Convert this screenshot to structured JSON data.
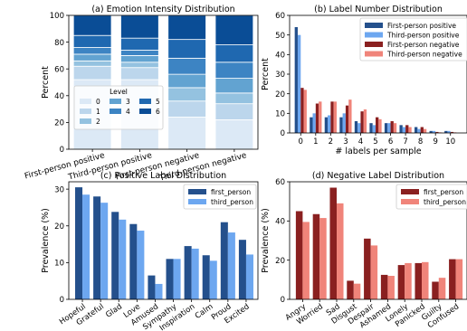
{
  "chart_data": [
    {
      "type": "bar",
      "stacked": true,
      "title": "(a) Emotion Intensity Distribution",
      "ylabel": "Percent",
      "ylim": [
        0,
        100
      ],
      "yticks": [
        0,
        20,
        40,
        60,
        80,
        100
      ],
      "categories": [
        "First-person positive",
        "Third-person positive",
        "First-person negative",
        "Third-person negative"
      ],
      "legend": {
        "title": "Level",
        "entries": [
          "0",
          "1",
          "2",
          "3",
          "4",
          "5",
          "6"
        ],
        "placement": "lower-left"
      },
      "colors": [
        "#dce9f6",
        "#bcd6ec",
        "#94c2e0",
        "#62a3d1",
        "#3d84c3",
        "#1f68b0",
        "#0a4d96"
      ],
      "series": [
        {
          "name": "0",
          "values": [
            52,
            52,
            24,
            22
          ]
        },
        {
          "name": "1",
          "values": [
            10,
            9,
            12,
            12
          ]
        },
        {
          "name": "2",
          "values": [
            4,
            4,
            10,
            8
          ]
        },
        {
          "name": "3",
          "values": [
            5,
            5,
            10,
            11
          ]
        },
        {
          "name": "4",
          "values": [
            5,
            4,
            12,
            12
          ]
        },
        {
          "name": "5",
          "values": [
            9,
            9,
            14,
            13
          ]
        },
        {
          "name": "6",
          "values": [
            15,
            17,
            18,
            22
          ]
        }
      ]
    },
    {
      "type": "bar",
      "title": "(b) Label Number Distribution",
      "xlabel": "# labels per sample",
      "ylabel": "Percent",
      "ylim": [
        0,
        60
      ],
      "yticks": [
        0,
        10,
        20,
        30,
        40,
        50,
        60
      ],
      "categories": [
        "0",
        "1",
        "2",
        "3",
        "4",
        "5",
        "6",
        "7",
        "8",
        "9",
        "10"
      ],
      "legend": {
        "placement": "top-right"
      },
      "series": [
        {
          "name": "First-person positive",
          "color": "#24508c",
          "values": [
            54,
            8,
            8,
            8,
            6,
            5,
            5,
            4,
            3,
            1,
            1
          ]
        },
        {
          "name": "Third-person positive",
          "color": "#6da7f0",
          "values": [
            50,
            10,
            9,
            10,
            5,
            4,
            5,
            3,
            2,
            1,
            1
          ]
        },
        {
          "name": "First-person negative",
          "color": "#8a2020",
          "values": [
            23,
            15,
            16,
            14,
            11,
            8,
            6,
            4,
            3,
            0.5,
            0.5
          ]
        },
        {
          "name": "Third-person negative",
          "color": "#f0847a",
          "values": [
            22,
            16,
            16,
            17,
            12,
            7,
            5,
            3,
            2,
            0.3,
            0.3
          ]
        }
      ]
    },
    {
      "type": "bar",
      "title": "(c) Positive Label Distribution",
      "ylabel": "Prevalence (%)",
      "ylim": [
        0,
        32
      ],
      "yticks": [
        0,
        10,
        20,
        30
      ],
      "categories": [
        "Hopeful",
        "Grateful",
        "Glad",
        "Love",
        "Amused",
        "Sympathy",
        "Inspiration",
        "Calm",
        "Proud",
        "Excited"
      ],
      "legend": {
        "placement": "top-right"
      },
      "series": [
        {
          "name": "first_person",
          "color": "#24508c",
          "values": [
            30.5,
            28,
            23.8,
            20.5,
            6.5,
            11,
            14.5,
            12,
            21,
            16.2
          ]
        },
        {
          "name": "third_person",
          "color": "#6da7f0",
          "values": [
            28.5,
            26.3,
            21.7,
            18.7,
            4.2,
            11,
            13.8,
            10.5,
            18.2,
            12.2
          ]
        }
      ]
    },
    {
      "type": "bar",
      "title": "(d) Negative Label Distribution",
      "ylabel": "Prevalence (%)",
      "ylim": [
        0,
        60
      ],
      "yticks": [
        0,
        20,
        40,
        60
      ],
      "categories": [
        "Angry",
        "Worried",
        "Sad",
        "Disgust",
        "Despair",
        "Ashamed",
        "Lonely",
        "Panicked",
        "Guilty",
        "Confused"
      ],
      "legend": {
        "placement": "top-right"
      },
      "series": [
        {
          "name": "first_person",
          "color": "#8a2020",
          "values": [
            45,
            43.5,
            57,
            9.5,
            31,
            12.5,
            17.5,
            18.5,
            9,
            20.5
          ]
        },
        {
          "name": "third_person",
          "color": "#f0847a",
          "values": [
            39.5,
            41.5,
            49,
            8,
            27.5,
            12,
            18.5,
            19,
            11,
            20.5
          ]
        }
      ]
    }
  ]
}
